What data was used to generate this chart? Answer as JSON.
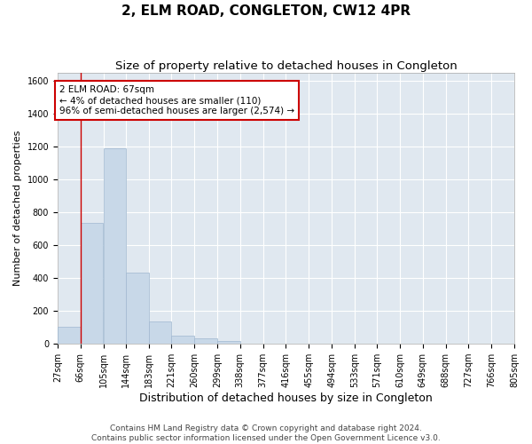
{
  "title": "2, ELM ROAD, CONGLETON, CW12 4PR",
  "subtitle": "Size of property relative to detached houses in Congleton",
  "xlabel": "Distribution of detached houses by size in Congleton",
  "ylabel": "Number of detached properties",
  "bar_color": "#c8d8e8",
  "bar_edge_color": "#a0b8d0",
  "background_color": "#e0e8f0",
  "grid_color": "white",
  "bin_edges": [
    27,
    66,
    105,
    144,
    183,
    221,
    260,
    299,
    338,
    377,
    416,
    455,
    494,
    533,
    571,
    610,
    649,
    688,
    727,
    766,
    805
  ],
  "bin_labels": [
    "27sqm",
    "66sqm",
    "105sqm",
    "144sqm",
    "183sqm",
    "221sqm",
    "260sqm",
    "299sqm",
    "338sqm",
    "377sqm",
    "416sqm",
    "455sqm",
    "494sqm",
    "533sqm",
    "571sqm",
    "610sqm",
    "649sqm",
    "688sqm",
    "727sqm",
    "766sqm",
    "805sqm"
  ],
  "bar_heights": [
    105,
    735,
    1190,
    435,
    135,
    52,
    32,
    15,
    0,
    0,
    0,
    0,
    0,
    0,
    0,
    0,
    0,
    0,
    0,
    0
  ],
  "ylim": [
    0,
    1650
  ],
  "yticks": [
    0,
    200,
    400,
    600,
    800,
    1000,
    1200,
    1400,
    1600
  ],
  "vline_x": 67,
  "vline_color": "#cc0000",
  "annotation_text": "2 ELM ROAD: 67sqm\n← 4% of detached houses are smaller (110)\n96% of semi-detached houses are larger (2,574) →",
  "annotation_box_color": "white",
  "annotation_box_edge_color": "#cc0000",
  "footer_text": "Contains HM Land Registry data © Crown copyright and database right 2024.\nContains public sector information licensed under the Open Government Licence v3.0.",
  "title_fontsize": 11,
  "subtitle_fontsize": 9.5,
  "xlabel_fontsize": 9,
  "ylabel_fontsize": 8,
  "tick_fontsize": 7,
  "annotation_fontsize": 7.5,
  "footer_fontsize": 6.5
}
